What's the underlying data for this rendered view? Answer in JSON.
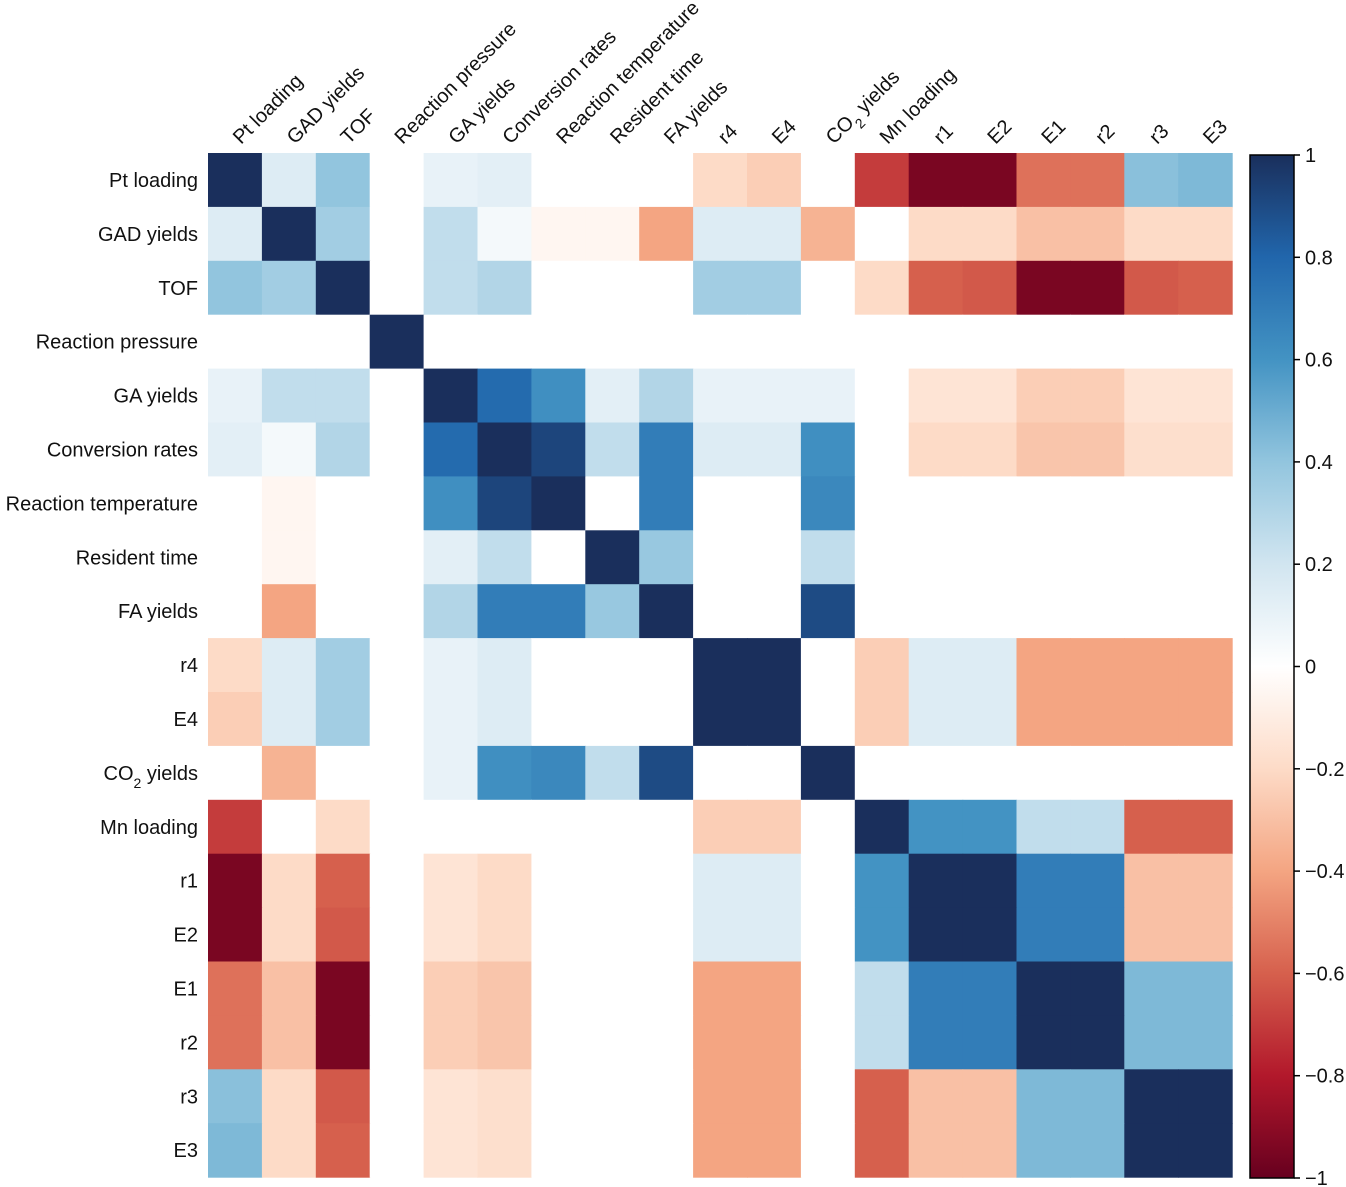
{
  "chart_data": {
    "type": "heatmap",
    "title": "",
    "x_labels": [
      "Pt loading",
      "GAD yields",
      "TOF",
      "Reaction pressure",
      "GA yields",
      "Conversion rates",
      "Reaction temperature",
      "Resident time",
      "FA yields",
      "r4",
      "E4",
      "CO2 yields",
      "Mn loading",
      "r1",
      "E2",
      "E1",
      "r2",
      "r3",
      "E3"
    ],
    "y_labels": [
      "Pt loading",
      "GAD yields",
      "TOF",
      "Reaction pressure",
      "GA yields",
      "Conversion rates",
      "Reaction temperature",
      "Resident time",
      "FA yields",
      "r4",
      "E4",
      "CO2 yields",
      "Mn loading",
      "r1",
      "E2",
      "E1",
      "r2",
      "r3",
      "E3"
    ],
    "subscript_label": {
      "label": "CO2 yields",
      "prefix": "CO",
      "sub": "2",
      "suffix": " yields"
    },
    "values": [
      [
        1.0,
        0.15,
        0.4,
        0.0,
        0.1,
        0.12,
        0.0,
        0.0,
        0.0,
        -0.2,
        -0.25,
        0.0,
        -0.7,
        -0.95,
        -0.95,
        -0.55,
        -0.55,
        0.42,
        0.45
      ],
      [
        0.15,
        1.0,
        0.35,
        0.0,
        0.25,
        0.05,
        -0.05,
        -0.05,
        -0.4,
        0.15,
        0.15,
        -0.35,
        0.0,
        -0.2,
        -0.2,
        -0.3,
        -0.3,
        -0.2,
        -0.2
      ],
      [
        0.4,
        0.35,
        1.0,
        0.0,
        0.25,
        0.3,
        0.0,
        0.0,
        0.0,
        0.35,
        0.35,
        0.0,
        -0.2,
        -0.6,
        -0.62,
        -0.95,
        -0.95,
        -0.62,
        -0.6
      ],
      [
        0.0,
        0.0,
        0.0,
        1.0,
        0.0,
        0.0,
        0.0,
        0.0,
        0.0,
        0.0,
        0.0,
        0.0,
        0.0,
        0.0,
        0.0,
        0.0,
        0.0,
        0.0,
        0.0
      ],
      [
        0.1,
        0.25,
        0.25,
        0.0,
        1.0,
        0.78,
        0.62,
        0.12,
        0.3,
        0.1,
        0.1,
        0.1,
        0.0,
        -0.15,
        -0.15,
        -0.25,
        -0.25,
        -0.15,
        -0.15
      ],
      [
        0.12,
        0.05,
        0.3,
        0.0,
        0.78,
        1.0,
        0.92,
        0.25,
        0.7,
        0.15,
        0.15,
        0.62,
        0.0,
        -0.2,
        -0.2,
        -0.28,
        -0.28,
        -0.18,
        -0.18
      ],
      [
        0.0,
        -0.05,
        0.0,
        0.0,
        0.62,
        0.92,
        1.0,
        0.0,
        0.7,
        0.0,
        0.0,
        0.65,
        0.0,
        0.0,
        0.0,
        0.0,
        0.0,
        0.0,
        0.0
      ],
      [
        0.0,
        -0.05,
        0.0,
        0.0,
        0.12,
        0.25,
        0.0,
        1.0,
        0.38,
        0.0,
        0.0,
        0.25,
        0.0,
        0.0,
        0.0,
        0.0,
        0.0,
        0.0,
        0.0
      ],
      [
        0.0,
        -0.4,
        0.0,
        0.0,
        0.3,
        0.7,
        0.7,
        0.38,
        1.0,
        0.0,
        0.0,
        0.9,
        0.0,
        0.0,
        0.0,
        0.0,
        0.0,
        0.0,
        0.0
      ],
      [
        -0.2,
        0.15,
        0.35,
        0.0,
        0.1,
        0.15,
        0.0,
        0.0,
        0.0,
        1.0,
        1.0,
        0.0,
        -0.25,
        0.15,
        0.15,
        -0.4,
        -0.4,
        -0.4,
        -0.4
      ],
      [
        -0.25,
        0.15,
        0.35,
        0.0,
        0.1,
        0.15,
        0.0,
        0.0,
        0.0,
        1.0,
        1.0,
        0.0,
        -0.25,
        0.15,
        0.15,
        -0.4,
        -0.4,
        -0.4,
        -0.4
      ],
      [
        0.0,
        -0.35,
        0.0,
        0.0,
        0.1,
        0.62,
        0.65,
        0.25,
        0.9,
        0.0,
        0.0,
        1.0,
        0.0,
        0.0,
        0.0,
        0.0,
        0.0,
        0.0,
        0.0
      ],
      [
        -0.7,
        0.0,
        -0.2,
        0.0,
        0.0,
        0.0,
        0.0,
        0.0,
        0.0,
        -0.25,
        -0.25,
        0.0,
        1.0,
        0.6,
        0.6,
        0.25,
        0.25,
        -0.6,
        -0.6
      ],
      [
        -0.95,
        -0.2,
        -0.6,
        0.0,
        -0.15,
        -0.2,
        0.0,
        0.0,
        0.0,
        0.15,
        0.15,
        0.0,
        0.6,
        1.0,
        1.0,
        0.7,
        0.7,
        -0.3,
        -0.3
      ],
      [
        -0.95,
        -0.2,
        -0.62,
        0.0,
        -0.15,
        -0.2,
        0.0,
        0.0,
        0.0,
        0.15,
        0.15,
        0.0,
        0.6,
        1.0,
        1.0,
        0.7,
        0.7,
        -0.3,
        -0.3
      ],
      [
        -0.55,
        -0.3,
        -0.95,
        0.0,
        -0.25,
        -0.28,
        0.0,
        0.0,
        0.0,
        -0.4,
        -0.4,
        0.0,
        0.25,
        0.7,
        0.7,
        1.0,
        1.0,
        0.45,
        0.45
      ],
      [
        -0.55,
        -0.3,
        -0.95,
        0.0,
        -0.25,
        -0.28,
        0.0,
        0.0,
        0.0,
        -0.4,
        -0.4,
        0.0,
        0.25,
        0.7,
        0.7,
        1.0,
        1.0,
        0.45,
        0.45
      ],
      [
        0.42,
        -0.2,
        -0.62,
        0.0,
        -0.15,
        -0.18,
        0.0,
        0.0,
        0.0,
        -0.4,
        -0.4,
        0.0,
        -0.6,
        -0.3,
        -0.3,
        0.45,
        0.45,
        1.0,
        1.0
      ],
      [
        0.45,
        -0.2,
        -0.6,
        0.0,
        -0.15,
        -0.18,
        0.0,
        0.0,
        0.0,
        -0.4,
        -0.4,
        0.0,
        -0.6,
        -0.3,
        -0.3,
        0.45,
        0.45,
        1.0,
        1.0
      ]
    ],
    "colorbar": {
      "range": [
        -1,
        1
      ],
      "ticks": [
        1,
        0.8,
        0.6,
        0.4,
        0.2,
        0,
        -0.2,
        -0.4,
        -0.6,
        -0.8,
        -1
      ],
      "tick_labels": [
        "1",
        "0.8",
        "0.6",
        "0.4",
        "0.2",
        "0",
        "−0.2",
        "−0.4",
        "−0.6",
        "−0.8",
        "−1"
      ]
    },
    "colormap": {
      "name": "diverging red-white-blue",
      "stops": [
        [
          -1.0,
          "#67001f"
        ],
        [
          -0.8,
          "#b2182b"
        ],
        [
          -0.6,
          "#d6604d"
        ],
        [
          -0.4,
          "#f4a582"
        ],
        [
          -0.2,
          "#fddbc7"
        ],
        [
          0.0,
          "#ffffff"
        ],
        [
          0.2,
          "#d1e5f0"
        ],
        [
          0.4,
          "#92c5de"
        ],
        [
          0.6,
          "#4393c3"
        ],
        [
          0.8,
          "#2166ac"
        ],
        [
          1.0,
          "#1a2f5c"
        ]
      ]
    }
  }
}
